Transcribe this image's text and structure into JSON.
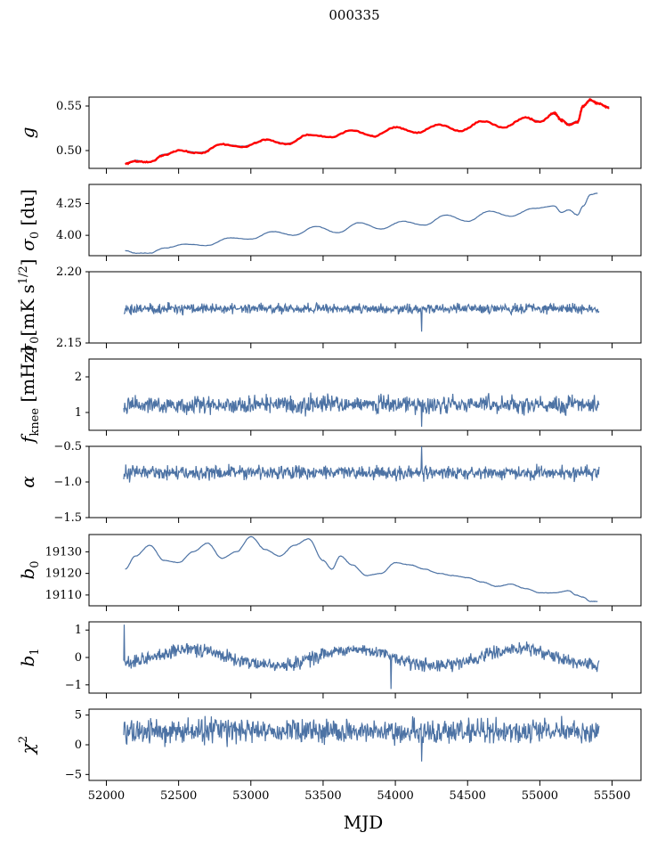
{
  "figure": {
    "title": "000335",
    "xlabel": "MJD",
    "xlim": [
      51880,
      55700
    ],
    "xticks": [
      52000,
      52500,
      53000,
      53500,
      54000,
      54500,
      55000,
      55500
    ],
    "xtick_labels": [
      "52000",
      "52500",
      "53000",
      "53500",
      "54000",
      "54500",
      "55000",
      "55500"
    ],
    "x_start": 52120,
    "x_end": 55410,
    "line_color": "#4c72a4",
    "fit_color": "#ff0000"
  },
  "chart_data": [
    {
      "type": "line",
      "ylabel": "g",
      "ylim": [
        0.48,
        0.56
      ],
      "yticks": [
        0.5,
        0.55
      ],
      "ytick_labels": [
        "0.50",
        "0.55"
      ],
      "series": [
        {
          "x": [
            52130,
            52200,
            52300,
            52400,
            52500,
            52650,
            52800,
            52950,
            53100,
            53250,
            53400,
            53550,
            53700,
            53850,
            54000,
            54150,
            54300,
            54450,
            54600,
            54750,
            54900,
            55000,
            55100,
            55150,
            55200,
            55260,
            55300,
            55350,
            55400,
            55480
          ],
          "values": [
            0.486,
            0.489,
            0.487,
            0.496,
            0.5,
            0.498,
            0.507,
            0.505,
            0.512,
            0.508,
            0.518,
            0.515,
            0.523,
            0.516,
            0.526,
            0.52,
            0.529,
            0.522,
            0.533,
            0.526,
            0.537,
            0.533,
            0.541,
            0.535,
            0.53,
            0.533,
            0.55,
            0.556,
            0.553,
            0.549
          ]
        }
      ],
      "fit": {
        "x": [
          52130,
          52200,
          52300,
          52400,
          52500,
          52650,
          52800,
          52950,
          53100,
          53250,
          53400,
          53550,
          53700,
          53850,
          54000,
          54150,
          54300,
          54450,
          54600,
          54750,
          54900,
          55000,
          55100,
          55150,
          55200,
          55260,
          55300,
          55350,
          55400,
          55480
        ],
        "values": [
          0.485,
          0.488,
          0.487,
          0.495,
          0.5,
          0.497,
          0.507,
          0.504,
          0.512,
          0.507,
          0.518,
          0.515,
          0.523,
          0.516,
          0.526,
          0.52,
          0.529,
          0.522,
          0.533,
          0.526,
          0.537,
          0.532,
          0.542,
          0.534,
          0.529,
          0.532,
          0.55,
          0.557,
          0.553,
          0.548
        ]
      }
    },
    {
      "type": "line",
      "ylabel": "σ0 [du]",
      "ylim": [
        3.84,
        4.4
      ],
      "yticks": [
        4.0,
        4.25
      ],
      "ytick_labels": [
        "4.00",
        "4.25"
      ],
      "series": [
        {
          "x": [
            52130,
            52200,
            52300,
            52400,
            52550,
            52700,
            52850,
            53000,
            53150,
            53300,
            53450,
            53600,
            53750,
            53900,
            54050,
            54200,
            54350,
            54500,
            54650,
            54800,
            54950,
            55100,
            55150,
            55200,
            55260,
            55300,
            55350,
            55400
          ],
          "values": [
            3.88,
            3.86,
            3.86,
            3.9,
            3.93,
            3.92,
            3.98,
            3.97,
            4.03,
            4.0,
            4.07,
            4.02,
            4.1,
            4.05,
            4.11,
            4.08,
            4.16,
            4.11,
            4.19,
            4.15,
            4.21,
            4.23,
            4.18,
            4.2,
            4.16,
            4.23,
            4.32,
            4.33
          ]
        }
      ]
    },
    {
      "type": "line",
      "ylabel": "σ0[mK s^1/2]",
      "ylim": [
        2.15,
        2.2
      ],
      "yticks": [
        2.15,
        2.2
      ],
      "ytick_labels": [
        "2.15",
        "2.20"
      ],
      "series": [
        {
          "generated": "noise",
          "mean": 2.174,
          "amplitude": 0.0025,
          "spikes": [
            [
              54180,
              2.158
            ]
          ]
        }
      ]
    },
    {
      "type": "line",
      "ylabel": "fknee [mHz]",
      "ylim": [
        0.5,
        2.5
      ],
      "yticks": [
        1,
        2
      ],
      "ytick_labels": [
        "1",
        "2"
      ],
      "series": [
        {
          "generated": "noise",
          "mean": 1.22,
          "amplitude": 0.17,
          "spikes": [
            [
              54180,
              0.6
            ]
          ]
        }
      ]
    },
    {
      "type": "line",
      "ylabel": "α",
      "ylim": [
        -1.5,
        -0.5
      ],
      "yticks": [
        -1.5,
        -1.0,
        -0.5
      ],
      "ytick_labels": [
        "−1.5",
        "−1.0",
        "−0.5"
      ],
      "series": [
        {
          "generated": "noise",
          "mean": -0.87,
          "amplitude": 0.07,
          "spikes": [
            [
              54180,
              -0.5
            ]
          ]
        }
      ]
    },
    {
      "type": "line",
      "ylabel": "b0",
      "ylim": [
        19105,
        19138
      ],
      "yticks": [
        19110,
        19120,
        19130
      ],
      "ytick_labels": [
        "19110",
        "19120",
        "19130"
      ],
      "series": [
        {
          "x": [
            52130,
            52200,
            52300,
            52400,
            52500,
            52600,
            52700,
            52800,
            52900,
            53000,
            53100,
            53200,
            53300,
            53400,
            53500,
            53560,
            53620,
            53700,
            53800,
            53900,
            54000,
            54100,
            54200,
            54300,
            54400,
            54500,
            54600,
            54700,
            54800,
            54900,
            55000,
            55100,
            55200,
            55250,
            55300,
            55350,
            55400
          ],
          "values": [
            19122,
            19128,
            19133,
            19126,
            19125,
            19130,
            19134,
            19127,
            19130,
            19137,
            19131,
            19128,
            19133,
            19136,
            19126,
            19122,
            19128,
            19124,
            19119,
            19120,
            19125,
            19124,
            19122,
            19120,
            19119,
            19118,
            19116,
            19114,
            19115,
            19113,
            19111,
            19111,
            19112,
            19110,
            19109,
            19107,
            19107
          ]
        }
      ]
    },
    {
      "type": "line",
      "ylabel": "b1",
      "ylim": [
        -1.3,
        1.3
      ],
      "yticks": [
        -1,
        0,
        1
      ],
      "ytick_labels": [
        "−1",
        "0",
        "1"
      ],
      "series": [
        {
          "generated": "noise",
          "mean": 0.0,
          "amplitude": 0.18,
          "wave": 0.3,
          "spikes": [
            [
              52125,
              1.2
            ],
            [
              53970,
              -1.15
            ]
          ]
        }
      ]
    },
    {
      "type": "line",
      "ylabel": "χ2",
      "ylim": [
        -6,
        6
      ],
      "yticks": [
        -5,
        0,
        5
      ],
      "ytick_labels": [
        "−5",
        "0",
        "5"
      ],
      "series": [
        {
          "generated": "noise",
          "mean": 2.3,
          "amplitude": 1.4,
          "spikes": [
            [
              54180,
              -2.8
            ]
          ]
        }
      ]
    }
  ]
}
